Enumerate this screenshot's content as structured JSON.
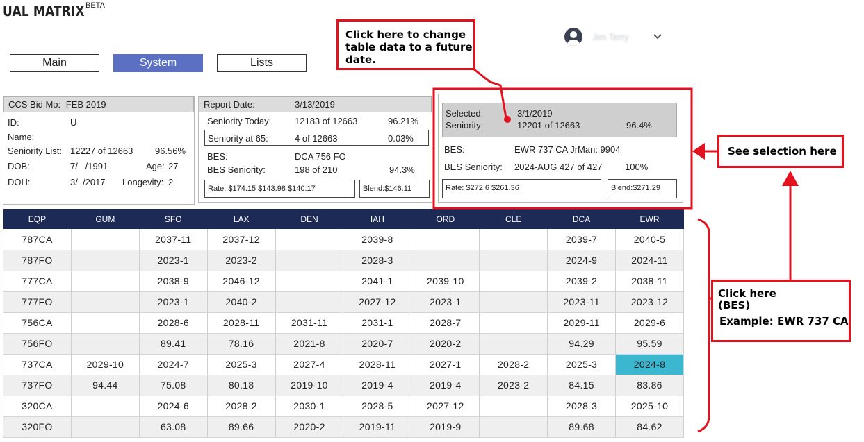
{
  "app": {
    "title": "UAL MATRIX",
    "badge": "BETA"
  },
  "user": {
    "name": "Jim Terry"
  },
  "nav": {
    "main": "Main",
    "system": "System",
    "lists": "Lists"
  },
  "panel1": {
    "ccs_label": "CCS Bid Mo:",
    "ccs_value": "FEB 2019",
    "id_label": "ID:",
    "id_value": "U",
    "name_label": "Name:",
    "seniority_label": "Seniority List:",
    "seniority_value": "12227 of 12663",
    "seniority_pct": "96.56%",
    "dob_label": "DOB:",
    "dob_value": "7/   /1991",
    "age_label": "Age:",
    "age_value": "27",
    "doh_label": "DOH:",
    "doh_value": "3/  /2017",
    "longevity_label": "Longevity:",
    "longevity_value": "2"
  },
  "panel2": {
    "report_label": "Report Date:",
    "report_value": "3/13/2019",
    "sen_today_label": "Seniority Today:",
    "sen_today_value": "12183 of 12663",
    "sen_today_pct": "96.21%",
    "sen65_label": "Seniority at 65:",
    "sen65_value": "4 of 12663",
    "sen65_pct": "0.03%",
    "bes_label": "BES:",
    "bes_value": "DCA 756 FO",
    "bes_sen_label": "BES Seniority:",
    "bes_sen_value": "198 of 210",
    "bes_sen_pct": "94.3%",
    "rate_text": "Rate:  $174.15   $143.98   $140.17",
    "blend_text": "Blend:$146.11"
  },
  "panel3": {
    "selected_label": "Selected:",
    "selected_value": "3/1/2019",
    "seniority_label": "Seniority:",
    "seniority_value": "12201 of 12663",
    "seniority_pct": "96.4%",
    "bes_label": "BES:",
    "bes_value": "EWR 737 CA JrMan: 9904",
    "bes_sen_label": "BES Seniority:",
    "bes_sen_value": "2024-AUG 427 of 427",
    "bes_sen_pct": "100%",
    "rate_text": "Rate:  $272.6   $261.36",
    "blend_text": "Blend:$271.29"
  },
  "grid": {
    "headers": [
      "EQP",
      "GUM",
      "SFO",
      "LAX",
      "DEN",
      "IAH",
      "ORD",
      "CLE",
      "DCA",
      "EWR"
    ],
    "rows": [
      [
        "787CA",
        "",
        "2037-11",
        "2037-12",
        "",
        "2039-8",
        "",
        "",
        "2039-7",
        "2040-5"
      ],
      [
        "787FO",
        "",
        "2023-1",
        "2023-2",
        "",
        "2028-3",
        "",
        "",
        "2024-9",
        "2024-11"
      ],
      [
        "777CA",
        "",
        "2038-9",
        "2046-12",
        "",
        "2041-1",
        "2039-10",
        "",
        "2039-2",
        "2038-11"
      ],
      [
        "777FO",
        "",
        "2023-1",
        "2040-2",
        "",
        "2027-12",
        "2023-1",
        "",
        "2023-11",
        "2023-12"
      ],
      [
        "756CA",
        "",
        "2028-6",
        "2028-11",
        "2031-11",
        "2031-1",
        "2028-7",
        "",
        "2029-11",
        "2029-6"
      ],
      [
        "756FO",
        "",
        "89.41",
        "78.16",
        "2021-8",
        "2020-7",
        "2020-2",
        "",
        "94.29",
        "95.59"
      ],
      [
        "737CA",
        "2029-10",
        "2024-7",
        "2025-3",
        "2027-4",
        "2028-11",
        "2027-1",
        "2028-2",
        "2025-3",
        "2024-8"
      ],
      [
        "737FO",
        "94.44",
        "75.08",
        "80.18",
        "2019-10",
        "2019-4",
        "2019-4",
        "2023-2",
        "84.15",
        "83.86"
      ],
      [
        "320CA",
        "",
        "2024-6",
        "2028-2",
        "2030-1",
        "2028-5",
        "2027-12",
        "",
        "2028-3",
        "2025-10"
      ],
      [
        "320FO",
        "",
        "63.08",
        "89.66",
        "2020-2",
        "2019-11",
        "2019-9",
        "",
        "89.68",
        "84.62"
      ]
    ],
    "highlight": {
      "row": 6,
      "col": 9,
      "color": "#3bb7cf"
    }
  },
  "annotations": {
    "date_note": "Click here to change table data to a future date.",
    "selection_note": "See selection here",
    "bes_note_1": "Click here",
    "bes_note_2": "(BES)",
    "bes_note_3": "Example: EWR 737 CA",
    "color": "#e3121f"
  }
}
